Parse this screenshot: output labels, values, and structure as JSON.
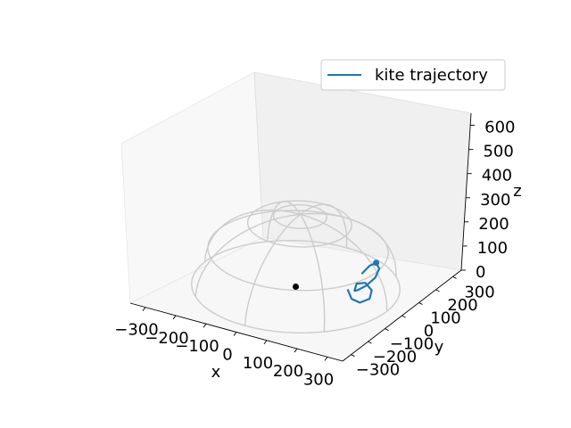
{
  "chart_data": {
    "type": "line3d",
    "title": "",
    "xlabel": "x",
    "ylabel": "y",
    "zlabel": "z",
    "xlim": [
      -350,
      350
    ],
    "ylim": [
      -350,
      350
    ],
    "zlim": [
      0,
      650
    ],
    "x_ticks": [
      "−300",
      "−200",
      "−100",
      "0",
      "100",
      "200",
      "300"
    ],
    "y_ticks": [
      "−300",
      "−200",
      "−100",
      "0",
      "100",
      "200",
      "300"
    ],
    "z_ticks": [
      "0",
      "100",
      "200",
      "300",
      "400",
      "500",
      "600"
    ],
    "legend": {
      "position": "top-right",
      "entries": [
        "kite trajectory"
      ]
    },
    "series": [
      {
        "name": "kite trajectory",
        "color": "#1f77b4",
        "points": [
          [
            200,
            -60,
            90
          ],
          [
            225,
            -80,
            70
          ],
          [
            250,
            -75,
            60
          ],
          [
            265,
            -45,
            65
          ],
          [
            255,
            -15,
            80
          ],
          [
            230,
            -10,
            100
          ],
          [
            215,
            -35,
            105
          ],
          [
            225,
            -65,
            95
          ],
          [
            245,
            -85,
            115
          ],
          [
            270,
            -80,
            140
          ],
          [
            285,
            -55,
            165
          ],
          [
            280,
            -25,
            185
          ],
          [
            262,
            -12,
            195
          ],
          [
            248,
            -25,
            185
          ],
          [
            240,
            -55,
            165
          ]
        ],
        "end_marker": [
          262,
          -12,
          195
        ]
      }
    ],
    "origin_marker": {
      "point": [
        0,
        0,
        0
      ],
      "color": "#000000"
    },
    "hemisphere": {
      "radius": 300,
      "color": "#cccccc",
      "latitudes": [
        0,
        150,
        260,
        290
      ],
      "meridians": 4
    }
  }
}
